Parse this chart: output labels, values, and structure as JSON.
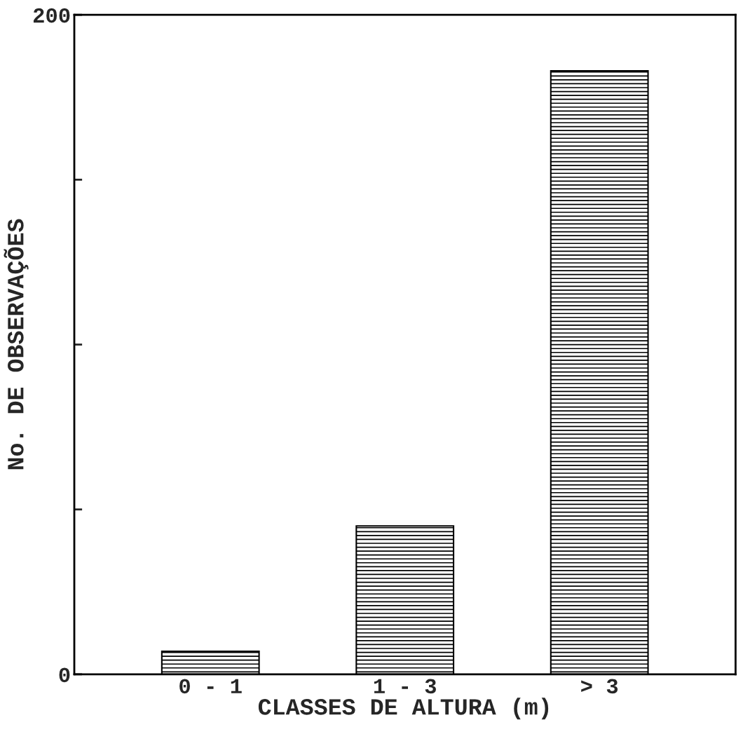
{
  "chart_data": {
    "type": "bar",
    "xlabel": "CLASSES DE ALTURA (m)",
    "ylabel": "No. DE OBSERVAÇÕES",
    "categories": [
      "0 - 1",
      "1 - 3",
      "> 3"
    ],
    "values": [
      7,
      45,
      183
    ],
    "color": "#000000",
    "ylim": [
      0,
      200
    ],
    "yticks": [
      0,
      {
        "value": 50,
        "label": null
      },
      {
        "value": 100,
        "label": null
      },
      {
        "value": 150,
        "label": null
      },
      200
    ],
    "grid": false,
    "legend": false
  }
}
